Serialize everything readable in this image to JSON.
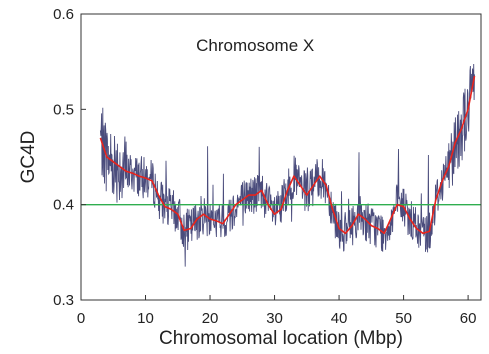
{
  "chart_data": {
    "type": "line",
    "title": "Chromosome X",
    "xlabel": "Chromosomal location (Mbp)",
    "ylabel": "GC4D",
    "xlim": [
      0,
      62
    ],
    "ylim": [
      0.3,
      0.6
    ],
    "x_ticks": [
      0,
      10,
      20,
      30,
      40,
      50,
      60
    ],
    "x_tick_labels": [
      "0",
      "10",
      "20",
      "30",
      "40",
      "50",
      "60"
    ],
    "y_ticks": [
      0.3,
      0.4,
      0.5,
      0.6
    ],
    "y_tick_labels": [
      "0.3",
      "0.4",
      "0.5",
      "0.6"
    ],
    "grid": false,
    "colors": {
      "raw": "#4a4c7c",
      "smoothed": "#e8231c",
      "reference": "#2fae4f"
    },
    "reference_line": {
      "y": 0.4
    },
    "smoothed": {
      "x": [
        3,
        4,
        5,
        6,
        7,
        8,
        9,
        10,
        11,
        12,
        13,
        14,
        15,
        16,
        17,
        18,
        19,
        20,
        21,
        22,
        23,
        24,
        25,
        26,
        27,
        28,
        29,
        30,
        31,
        32,
        33,
        34,
        35,
        36,
        37,
        38,
        39,
        40,
        41,
        42,
        43,
        44,
        45,
        46,
        47,
        48,
        49,
        50,
        51,
        52,
        53,
        54,
        55,
        56,
        57,
        58,
        59,
        60,
        61
      ],
      "y": [
        0.47,
        0.45,
        0.445,
        0.44,
        0.435,
        0.433,
        0.43,
        0.428,
        0.425,
        0.41,
        0.398,
        0.395,
        0.39,
        0.373,
        0.375,
        0.385,
        0.39,
        0.385,
        0.383,
        0.38,
        0.39,
        0.4,
        0.405,
        0.41,
        0.41,
        0.415,
        0.4,
        0.39,
        0.395,
        0.415,
        0.43,
        0.42,
        0.41,
        0.42,
        0.43,
        0.42,
        0.395,
        0.375,
        0.37,
        0.378,
        0.39,
        0.385,
        0.378,
        0.375,
        0.37,
        0.385,
        0.4,
        0.398,
        0.385,
        0.375,
        0.37,
        0.372,
        0.405,
        0.425,
        0.44,
        0.465,
        0.48,
        0.5,
        0.535
      ]
    }
  }
}
